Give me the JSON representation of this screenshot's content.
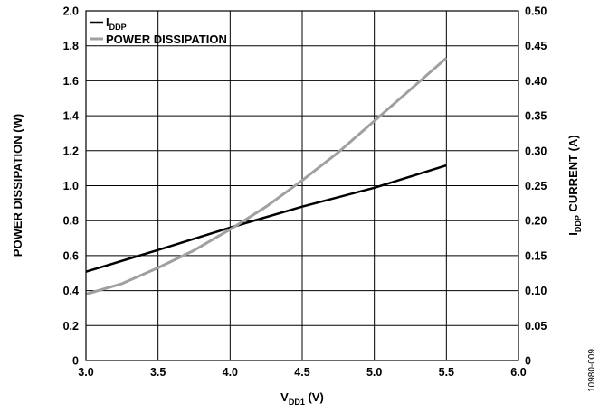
{
  "chart_data": {
    "type": "line",
    "xlabel": {
      "main": "V",
      "sub": "DD1",
      "unit": " (V)"
    },
    "ylabel_left": "POWER DISSIPATION (W)",
    "ylabel_right": {
      "main": "I",
      "sub": "DDP",
      "rest": " CURRENT (A)"
    },
    "xlim": [
      3.0,
      6.0
    ],
    "ylim_left": [
      0,
      2.0
    ],
    "ylim_right": [
      0,
      0.5
    ],
    "x_ticks": [
      "3.0",
      "3.5",
      "4.0",
      "4.5",
      "5.0",
      "5.5",
      "6.0"
    ],
    "y_left_ticks": [
      "0",
      "0.2",
      "0.4",
      "0.6",
      "0.8",
      "1.0",
      "1.2",
      "1.4",
      "1.6",
      "1.8",
      "2.0"
    ],
    "y_right_ticks": [
      "0",
      "0.05",
      "0.10",
      "0.15",
      "0.20",
      "0.25",
      "0.30",
      "0.35",
      "0.40",
      "0.45",
      "0.50"
    ],
    "grid": true,
    "legend_position": "top-left",
    "series": [
      {
        "name": {
          "main": "I",
          "sub": "DDP"
        },
        "axis": "right",
        "color": "#000000",
        "x": [
          3.0,
          3.5,
          4.0,
          4.5,
          5.0,
          5.5
        ],
        "y": [
          0.127,
          0.158,
          0.19,
          0.22,
          0.247,
          0.279
        ]
      },
      {
        "name": "POWER DISSIPATION",
        "axis": "left",
        "color": "#a0a0a0",
        "x": [
          3.0,
          3.25,
          3.5,
          3.75,
          4.0,
          4.25,
          4.5,
          4.75,
          5.0,
          5.25,
          5.5
        ],
        "y": [
          0.38,
          0.44,
          0.53,
          0.63,
          0.75,
          0.88,
          1.03,
          1.19,
          1.37,
          1.55,
          1.73
        ]
      }
    ]
  },
  "figure_id": "10980-009"
}
